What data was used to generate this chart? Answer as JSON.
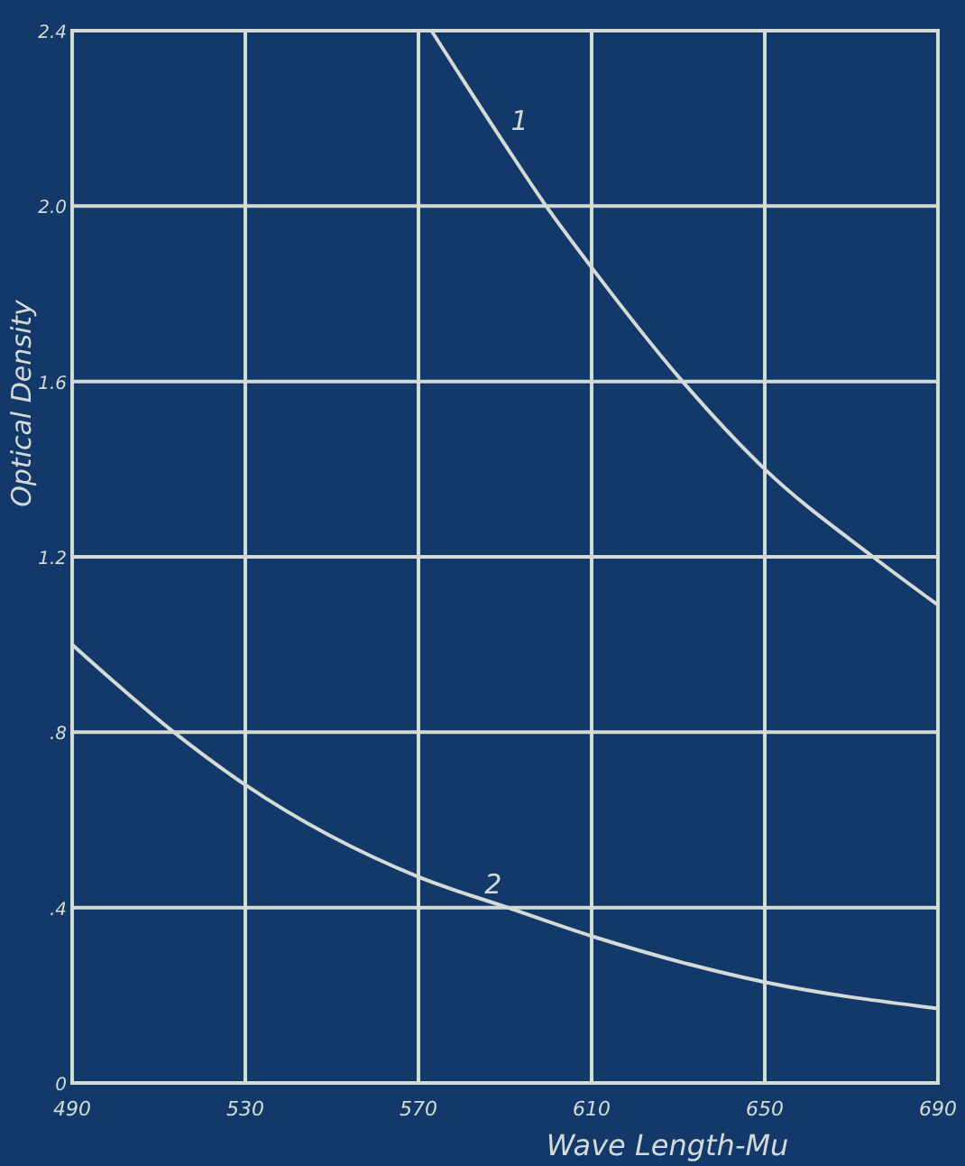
{
  "chart_data": {
    "type": "line",
    "xlabel": "Wave Length-Mu",
    "ylabel": "Optical Density",
    "xlim": [
      490,
      690
    ],
    "xticks": [
      490,
      530,
      570,
      610,
      650,
      690
    ],
    "ylim": [
      0,
      2.4
    ],
    "yticks": [
      0,
      {
        "value": 0.4,
        "label": ".4"
      },
      {
        "value": 0.8,
        "label": ".8"
      },
      1.2,
      1.6,
      {
        "value": 2,
        "label": "2.0"
      },
      2.4
    ],
    "grid": true,
    "marker": "none",
    "line_style": "solid",
    "series": [
      {
        "name": "1",
        "color": "#d4dad6",
        "x": [
          573,
          590,
          599.5,
          610,
          631,
          650,
          675,
          690
        ],
        "values": [
          2.4,
          2.14,
          2.0,
          1.86,
          1.6,
          1.4,
          1.2,
          1.09
        ]
      },
      {
        "name": "2",
        "color": "#d4dad6",
        "x": [
          490,
          513.5,
          530,
          570,
          590.6,
          610,
          650,
          690
        ],
        "values": [
          1.0,
          0.8,
          0.68,
          0.47,
          0.4,
          0.335,
          0.23,
          0.17
        ]
      }
    ]
  }
}
